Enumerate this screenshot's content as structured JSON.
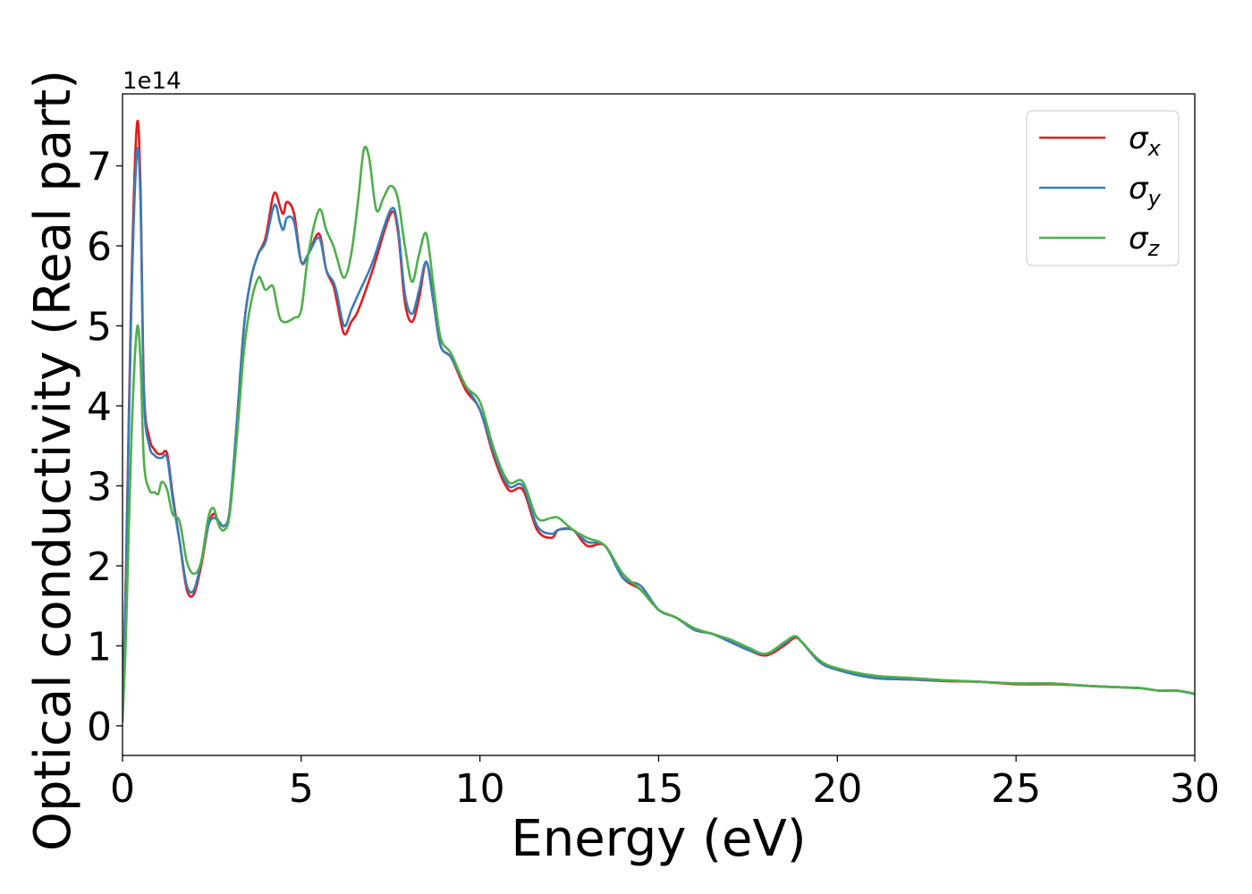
{
  "chart_data": {
    "type": "line",
    "xlabel": "Energy (eV)",
    "ylabel": "Optical conductivity (Real part)",
    "offset_label": "1e14",
    "xlim": [
      0,
      30
    ],
    "ylim": [
      -0.37,
      7.9
    ],
    "y_scale_factor": 100000000000000.0,
    "xticks": [
      0,
      5,
      10,
      15,
      20,
      25,
      30
    ],
    "yticks": [
      0,
      1,
      2,
      3,
      4,
      5,
      6,
      7
    ],
    "grid": false,
    "legend_position": "top-right",
    "series": [
      {
        "name": "σx",
        "label_main": "σ",
        "label_sub": "x",
        "color": "#e41a1c",
        "x": [
          0,
          0.1,
          0.25,
          0.4,
          0.5,
          0.6,
          0.75,
          0.9,
          1.0,
          1.1,
          1.25,
          1.4,
          1.6,
          1.8,
          2.0,
          2.2,
          2.4,
          2.55,
          2.7,
          2.85,
          3.0,
          3.2,
          3.4,
          3.6,
          3.8,
          4.0,
          4.2,
          4.3,
          4.4,
          4.5,
          4.6,
          4.8,
          5.0,
          5.2,
          5.5,
          5.7,
          5.9,
          6.0,
          6.2,
          6.4,
          6.6,
          7.0,
          7.5,
          7.7,
          7.9,
          8.1,
          8.3,
          8.5,
          8.7,
          8.9,
          9.2,
          9.6,
          10.0,
          10.4,
          10.8,
          11.2,
          11.6,
          12.0,
          12.2,
          12.6,
          13.0,
          13.5,
          14.0,
          14.5,
          15.0,
          15.5,
          16.0,
          16.5,
          17.0,
          17.5,
          18.0,
          18.5,
          18.8,
          19.0,
          19.5,
          20.0,
          21.0,
          22.0,
          23.0,
          24.0,
          25.0,
          26.0,
          27.0,
          28.0,
          28.5,
          29.0,
          29.5,
          30.0
        ],
        "y": [
          0.05,
          2.0,
          5.5,
          7.5,
          6.8,
          4.2,
          3.6,
          3.45,
          3.4,
          3.4,
          3.4,
          2.9,
          2.3,
          1.7,
          1.65,
          2.0,
          2.5,
          2.65,
          2.55,
          2.5,
          2.7,
          3.8,
          5.0,
          5.6,
          5.9,
          6.1,
          6.6,
          6.65,
          6.5,
          6.4,
          6.55,
          6.4,
          5.8,
          5.9,
          6.15,
          5.7,
          5.5,
          5.3,
          4.9,
          5.05,
          5.2,
          5.7,
          6.4,
          6.2,
          5.3,
          5.05,
          5.35,
          5.8,
          5.3,
          4.75,
          4.6,
          4.2,
          3.95,
          3.35,
          2.95,
          2.95,
          2.45,
          2.35,
          2.45,
          2.45,
          2.25,
          2.25,
          1.85,
          1.7,
          1.45,
          1.35,
          1.2,
          1.15,
          1.05,
          0.95,
          0.88,
          1.0,
          1.1,
          1.05,
          0.8,
          0.7,
          0.6,
          0.58,
          0.56,
          0.55,
          0.52,
          0.52,
          0.5,
          0.48,
          0.47,
          0.44,
          0.44,
          0.4
        ]
      },
      {
        "name": "σy",
        "label_main": "σ",
        "label_sub": "y",
        "color": "#377eb8",
        "x": [
          0,
          0.1,
          0.25,
          0.4,
          0.5,
          0.6,
          0.75,
          0.9,
          1.0,
          1.1,
          1.25,
          1.4,
          1.6,
          1.8,
          2.0,
          2.2,
          2.4,
          2.55,
          2.7,
          2.85,
          3.0,
          3.2,
          3.4,
          3.6,
          3.8,
          4.0,
          4.2,
          4.3,
          4.4,
          4.5,
          4.6,
          4.8,
          5.0,
          5.2,
          5.5,
          5.7,
          5.9,
          6.0,
          6.2,
          6.4,
          6.6,
          7.0,
          7.5,
          7.7,
          7.9,
          8.1,
          8.3,
          8.5,
          8.7,
          8.9,
          9.2,
          9.6,
          10.0,
          10.4,
          10.8,
          11.2,
          11.6,
          12.0,
          12.2,
          12.6,
          13.0,
          13.5,
          14.0,
          14.5,
          15.0,
          15.5,
          16.0,
          16.5,
          17.0,
          17.5,
          18.0,
          18.5,
          18.8,
          19.0,
          19.5,
          20.0,
          21.0,
          22.0,
          23.0,
          24.0,
          25.0,
          26.0,
          27.0,
          28.0,
          28.5,
          29.0,
          29.5,
          30.0
        ],
        "y": [
          0.05,
          1.9,
          5.3,
          7.15,
          6.6,
          4.1,
          3.5,
          3.38,
          3.35,
          3.35,
          3.35,
          2.85,
          2.3,
          1.75,
          1.7,
          2.05,
          2.5,
          2.6,
          2.55,
          2.5,
          2.7,
          3.8,
          5.0,
          5.6,
          5.9,
          6.05,
          6.45,
          6.5,
          6.3,
          6.2,
          6.35,
          6.3,
          5.8,
          5.9,
          6.1,
          5.7,
          5.55,
          5.4,
          5.0,
          5.2,
          5.4,
          5.8,
          6.45,
          6.25,
          5.4,
          5.15,
          5.45,
          5.8,
          5.3,
          4.75,
          4.6,
          4.25,
          3.95,
          3.4,
          3.0,
          3.0,
          2.5,
          2.4,
          2.45,
          2.45,
          2.3,
          2.25,
          1.85,
          1.75,
          1.45,
          1.35,
          1.2,
          1.15,
          1.05,
          0.95,
          0.9,
          1.02,
          1.12,
          1.05,
          0.8,
          0.7,
          0.6,
          0.58,
          0.57,
          0.55,
          0.53,
          0.53,
          0.5,
          0.48,
          0.47,
          0.44,
          0.44,
          0.4
        ]
      },
      {
        "name": "σz",
        "label_main": "σ",
        "label_sub": "z",
        "color": "#4daf4a",
        "x": [
          0,
          0.1,
          0.25,
          0.4,
          0.5,
          0.6,
          0.75,
          0.9,
          1.0,
          1.1,
          1.25,
          1.4,
          1.6,
          1.8,
          2.0,
          2.2,
          2.4,
          2.55,
          2.7,
          2.85,
          3.0,
          3.2,
          3.4,
          3.6,
          3.8,
          3.9,
          4.0,
          4.2,
          4.3,
          4.4,
          4.5,
          4.6,
          4.8,
          5.0,
          5.2,
          5.5,
          5.7,
          5.9,
          6.0,
          6.2,
          6.4,
          6.6,
          6.75,
          6.9,
          7.1,
          7.3,
          7.5,
          7.7,
          7.9,
          8.1,
          8.3,
          8.5,
          8.7,
          8.9,
          9.2,
          9.6,
          10.0,
          10.4,
          10.8,
          11.2,
          11.6,
          12.0,
          12.2,
          12.6,
          13.0,
          13.5,
          14.0,
          14.5,
          15.0,
          15.5,
          16.0,
          16.5,
          17.0,
          17.5,
          18.0,
          18.5,
          18.8,
          19.0,
          19.5,
          20.0,
          21.0,
          22.0,
          23.0,
          24.0,
          25.0,
          26.0,
          27.0,
          28.0,
          28.5,
          29.0,
          29.5,
          30.0
        ],
        "y": [
          0.05,
          1.2,
          3.6,
          4.95,
          4.6,
          3.3,
          2.95,
          2.92,
          2.9,
          3.05,
          2.95,
          2.65,
          2.55,
          2.05,
          1.9,
          2.05,
          2.6,
          2.72,
          2.5,
          2.45,
          2.65,
          3.6,
          4.7,
          5.3,
          5.6,
          5.55,
          5.45,
          5.5,
          5.3,
          5.1,
          5.05,
          5.05,
          5.1,
          5.2,
          5.9,
          6.45,
          6.2,
          6.0,
          5.85,
          5.6,
          5.9,
          6.6,
          7.2,
          7.1,
          6.45,
          6.6,
          6.75,
          6.6,
          6.0,
          5.55,
          5.9,
          6.15,
          5.5,
          4.85,
          4.65,
          4.25,
          4.05,
          3.45,
          3.05,
          3.05,
          2.6,
          2.6,
          2.6,
          2.45,
          2.35,
          2.25,
          1.9,
          1.7,
          1.45,
          1.35,
          1.22,
          1.15,
          1.08,
          0.98,
          0.9,
          1.04,
          1.12,
          1.05,
          0.82,
          0.72,
          0.63,
          0.6,
          0.57,
          0.55,
          0.53,
          0.53,
          0.5,
          0.48,
          0.47,
          0.44,
          0.44,
          0.4
        ]
      }
    ]
  }
}
